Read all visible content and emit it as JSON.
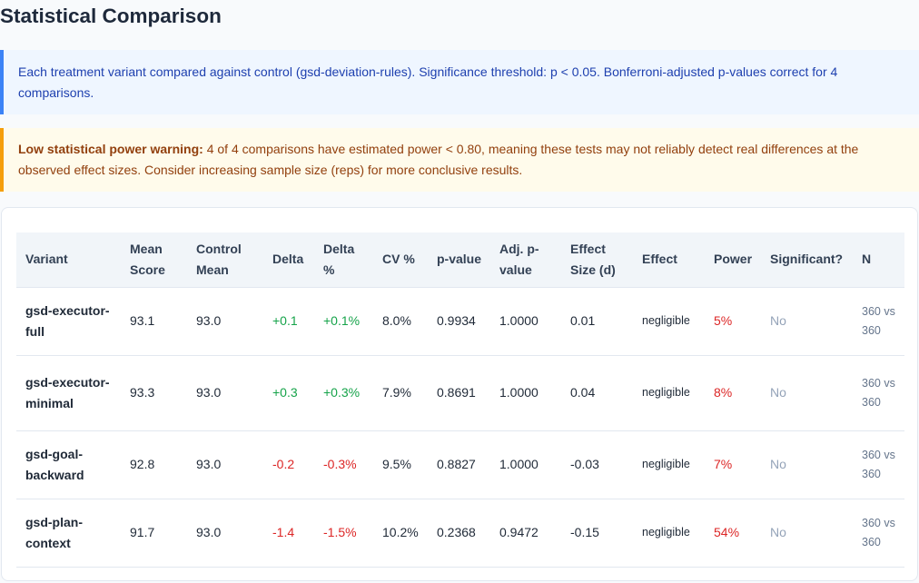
{
  "page": {
    "title": "Statistical Comparison",
    "info": "Each treatment variant compared against control (gsd-deviation-rules). Significance threshold: p < 0.05. Bonferroni-adjusted p-values correct for 4 comparisons.",
    "warning_label": "Low statistical power warning:",
    "warning_text": " 4 of 4 comparisons have estimated power < 0.80, meaning these tests may not reliably detect real differences at the observed effect sizes. Consider increasing sample size (reps) for more conclusive results."
  },
  "table": {
    "headers": [
      "Variant",
      "Mean Score",
      "Control Mean",
      "Delta",
      "Delta %",
      "CV %",
      "p-value",
      "Adj. p-value",
      "Effect Size (d)",
      "Effect",
      "Power",
      "Significant?",
      "N"
    ],
    "rows": [
      {
        "variant": "gsd-executor-full",
        "mean": "93.1",
        "control": "93.0",
        "delta": "+0.1",
        "delta_pct": "+0.1%",
        "delta_sign": "pos",
        "cv": "8.0%",
        "p": "0.9934",
        "adj_p": "1.0000",
        "d": "0.01",
        "effect": "negligible",
        "power": "5%",
        "significant": "No",
        "n": "360 vs 360"
      },
      {
        "variant": "gsd-executor-minimal",
        "mean": "93.3",
        "control": "93.0",
        "delta": "+0.3",
        "delta_pct": "+0.3%",
        "delta_sign": "pos",
        "cv": "7.9%",
        "p": "0.8691",
        "adj_p": "1.0000",
        "d": "0.04",
        "effect": "negligible",
        "power": "8%",
        "significant": "No",
        "n": "360 vs 360"
      },
      {
        "variant": "gsd-goal-backward",
        "mean": "92.8",
        "control": "93.0",
        "delta": "-0.2",
        "delta_pct": "-0.3%",
        "delta_sign": "neg",
        "cv": "9.5%",
        "p": "0.8827",
        "adj_p": "1.0000",
        "d": "-0.03",
        "effect": "negligible",
        "power": "7%",
        "significant": "No",
        "n": "360 vs 360"
      },
      {
        "variant": "gsd-plan-context",
        "mean": "91.7",
        "control": "93.0",
        "delta": "-1.4",
        "delta_pct": "-1.5%",
        "delta_sign": "neg",
        "cv": "10.2%",
        "p": "0.2368",
        "adj_p": "0.9472",
        "d": "-0.15",
        "effect": "negligible",
        "power": "54%",
        "significant": "No",
        "n": "360 vs 360"
      }
    ]
  },
  "colors": {
    "positive": "#16a34a",
    "negative": "#dc2626",
    "info_accent": "#3b82f6",
    "warning_accent": "#f59e0b"
  }
}
